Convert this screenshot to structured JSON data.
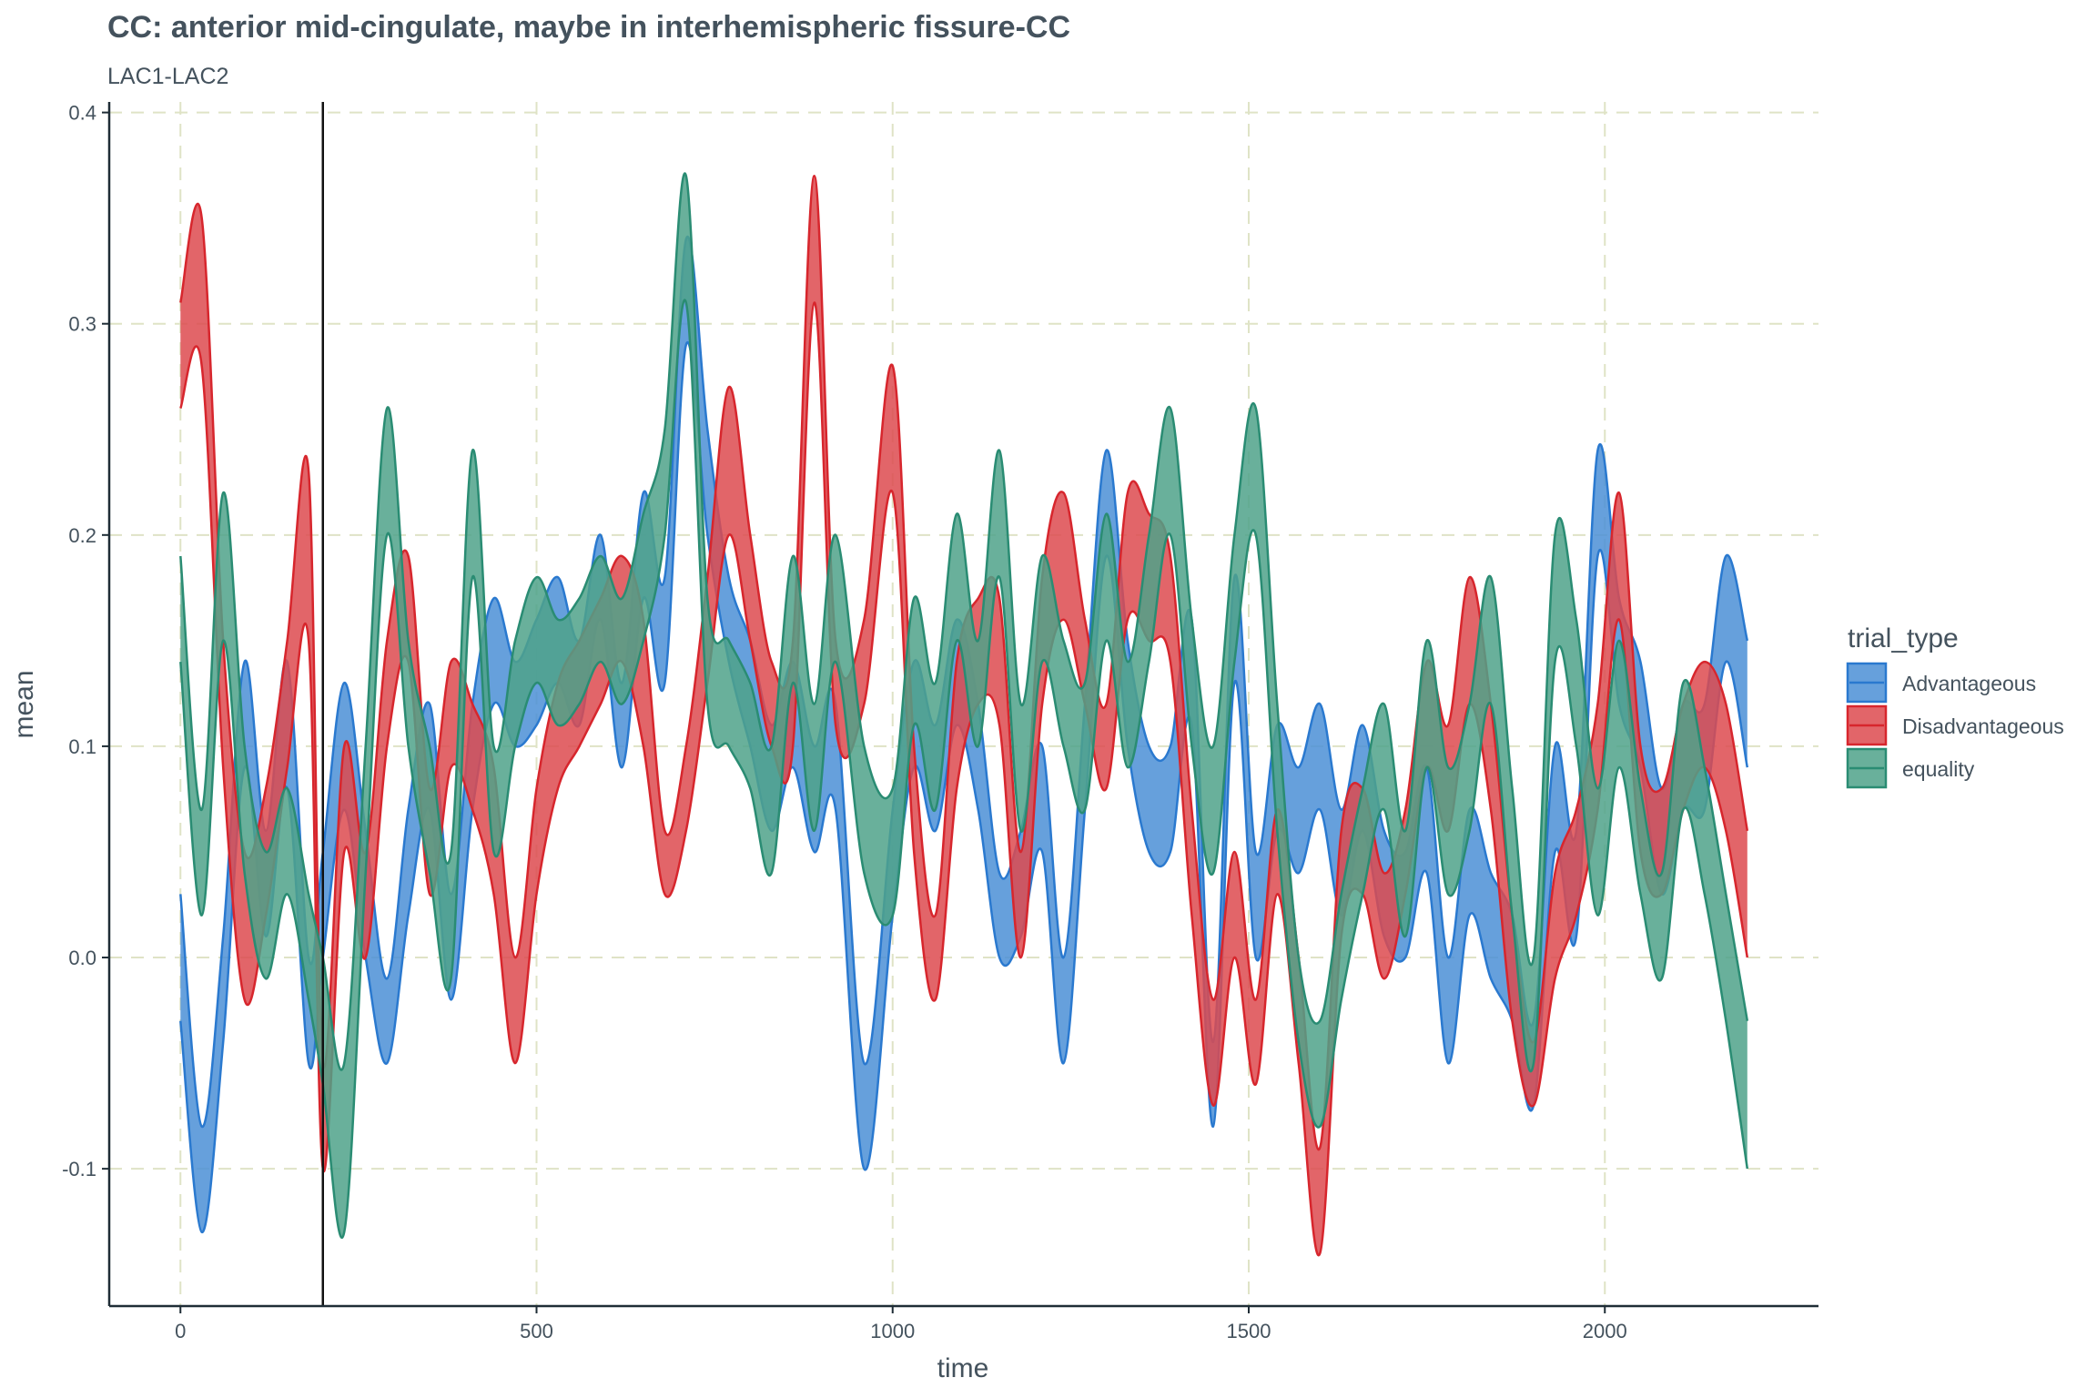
{
  "chart_data": {
    "type": "area",
    "title": "CC: anterior mid-cingulate, maybe in interhemispheric fissure-CC",
    "subtitle": "LAC1-LAC2",
    "xlabel": "time",
    "ylabel": "mean",
    "xlim": [
      -100,
      2300
    ],
    "ylim": [
      -0.165,
      0.405
    ],
    "x_ticks": [
      0,
      500,
      1000,
      1500,
      2000
    ],
    "x_tick_labels": [
      "0",
      "500",
      "1000",
      "1500",
      "2000"
    ],
    "y_ticks": [
      -0.1,
      0.0,
      0.1,
      0.2,
      0.3,
      0.4
    ],
    "y_tick_labels": [
      "-0.1",
      "0.0",
      "0.1",
      "0.2",
      "0.3",
      "0.4"
    ],
    "grid": true,
    "vline_x": 200,
    "legend_title": "trial_type",
    "legend_position": "right",
    "series": [
      {
        "name": "Advantageous",
        "color": "#2a79cf",
        "fill": "#4b8fd6",
        "x": [
          0,
          30,
          60,
          90,
          120,
          150,
          180,
          200,
          230,
          260,
          290,
          320,
          350,
          380,
          410,
          440,
          470,
          500,
          530,
          560,
          590,
          620,
          650,
          680,
          710,
          740,
          770,
          800,
          830,
          860,
          890,
          920,
          960,
          1000,
          1030,
          1060,
          1090,
          1120,
          1150,
          1180,
          1210,
          1240,
          1270,
          1300,
          1330,
          1360,
          1390,
          1420,
          1450,
          1480,
          1510,
          1540,
          1570,
          1600,
          1630,
          1660,
          1690,
          1720,
          1750,
          1780,
          1810,
          1840,
          1870,
          1900,
          1930,
          1960,
          1990,
          2020,
          2050,
          2080,
          2110,
          2140,
          2170,
          2200
        ],
        "upper": [
          0.03,
          -0.08,
          0.01,
          0.14,
          0.06,
          0.14,
          0.0,
          0.05,
          0.13,
          0.06,
          -0.01,
          0.07,
          0.12,
          0.03,
          0.12,
          0.17,
          0.14,
          0.16,
          0.18,
          0.15,
          0.2,
          0.13,
          0.22,
          0.18,
          0.34,
          0.25,
          0.18,
          0.15,
          0.11,
          0.14,
          0.1,
          0.12,
          -0.05,
          0.07,
          0.14,
          0.11,
          0.16,
          0.12,
          0.04,
          0.06,
          0.1,
          0.0,
          0.12,
          0.24,
          0.15,
          0.1,
          0.1,
          0.16,
          -0.04,
          0.18,
          0.05,
          0.11,
          0.09,
          0.12,
          0.07,
          0.11,
          0.06,
          0.05,
          0.09,
          0.0,
          0.07,
          0.04,
          0.02,
          -0.03,
          0.1,
          0.06,
          0.24,
          0.17,
          0.14,
          0.08,
          0.12,
          0.12,
          0.19,
          0.15
        ],
        "lower": [
          -0.03,
          -0.13,
          -0.04,
          0.09,
          0.01,
          0.08,
          -0.05,
          0.0,
          0.07,
          0.0,
          -0.05,
          0.02,
          0.07,
          -0.02,
          0.07,
          0.12,
          0.1,
          0.11,
          0.13,
          0.11,
          0.16,
          0.09,
          0.17,
          0.13,
          0.29,
          0.2,
          0.14,
          0.1,
          0.06,
          0.09,
          0.05,
          0.07,
          -0.1,
          0.02,
          0.09,
          0.06,
          0.11,
          0.07,
          0.0,
          0.01,
          0.05,
          -0.05,
          0.07,
          0.19,
          0.1,
          0.05,
          0.05,
          0.11,
          -0.08,
          0.13,
          0.0,
          0.06,
          0.04,
          0.07,
          0.02,
          0.06,
          0.01,
          0.0,
          0.04,
          -0.05,
          0.02,
          -0.01,
          -0.03,
          -0.07,
          0.05,
          0.01,
          0.19,
          0.12,
          0.09,
          0.03,
          0.07,
          0.07,
          0.14,
          0.09
        ]
      },
      {
        "name": "Disadvantageous",
        "color": "#d7262d",
        "fill": "#dd4a4f",
        "x": [
          0,
          30,
          60,
          90,
          120,
          150,
          180,
          200,
          230,
          260,
          290,
          320,
          350,
          380,
          410,
          440,
          470,
          500,
          530,
          560,
          590,
          620,
          650,
          680,
          710,
          740,
          770,
          800,
          830,
          860,
          890,
          920,
          960,
          1000,
          1030,
          1060,
          1090,
          1120,
          1150,
          1180,
          1210,
          1240,
          1270,
          1300,
          1330,
          1360,
          1390,
          1420,
          1450,
          1480,
          1510,
          1540,
          1570,
          1600,
          1630,
          1660,
          1690,
          1720,
          1750,
          1780,
          1810,
          1840,
          1870,
          1900,
          1930,
          1960,
          1990,
          2020,
          2050,
          2080,
          2110,
          2140,
          2170,
          2200
        ],
        "upper": [
          0.31,
          0.35,
          0.15,
          0.05,
          0.08,
          0.15,
          0.23,
          -0.05,
          0.1,
          0.05,
          0.15,
          0.19,
          0.08,
          0.14,
          0.12,
          0.09,
          0.0,
          0.08,
          0.13,
          0.15,
          0.17,
          0.19,
          0.16,
          0.06,
          0.1,
          0.18,
          0.27,
          0.2,
          0.14,
          0.15,
          0.37,
          0.15,
          0.16,
          0.28,
          0.1,
          0.02,
          0.14,
          0.17,
          0.17,
          0.05,
          0.18,
          0.22,
          0.16,
          0.12,
          0.22,
          0.21,
          0.19,
          0.07,
          -0.02,
          0.05,
          -0.02,
          0.07,
          0.0,
          -0.09,
          0.06,
          0.08,
          0.04,
          0.07,
          0.14,
          0.11,
          0.18,
          0.12,
          0.02,
          -0.04,
          0.04,
          0.07,
          0.12,
          0.22,
          0.1,
          0.08,
          0.12,
          0.14,
          0.12,
          0.06
        ],
        "lower": [
          0.26,
          0.28,
          0.09,
          -0.02,
          0.02,
          0.09,
          0.15,
          -0.1,
          0.05,
          0.0,
          0.1,
          0.14,
          0.03,
          0.09,
          0.07,
          0.03,
          -0.05,
          0.03,
          0.08,
          0.1,
          0.12,
          0.14,
          0.1,
          0.03,
          0.06,
          0.13,
          0.2,
          0.15,
          0.1,
          0.1,
          0.31,
          0.11,
          0.12,
          0.22,
          0.05,
          -0.02,
          0.08,
          0.12,
          0.11,
          0.0,
          0.12,
          0.16,
          0.12,
          0.08,
          0.16,
          0.15,
          0.14,
          0.02,
          -0.07,
          0.0,
          -0.06,
          0.03,
          -0.05,
          -0.14,
          0.01,
          0.03,
          -0.01,
          0.03,
          0.09,
          0.06,
          0.12,
          0.07,
          -0.03,
          -0.07,
          -0.01,
          0.02,
          0.07,
          0.16,
          0.05,
          0.03,
          0.07,
          0.09,
          0.06,
          0.0
        ]
      },
      {
        "name": "equality",
        "color": "#2a8c73",
        "fill": "#4fa28a",
        "x": [
          0,
          30,
          60,
          90,
          120,
          150,
          180,
          200,
          230,
          260,
          290,
          320,
          350,
          380,
          410,
          440,
          470,
          500,
          530,
          560,
          590,
          620,
          650,
          680,
          710,
          740,
          770,
          800,
          830,
          860,
          890,
          920,
          960,
          1000,
          1030,
          1060,
          1090,
          1120,
          1150,
          1180,
          1210,
          1240,
          1270,
          1300,
          1330,
          1360,
          1390,
          1420,
          1450,
          1480,
          1510,
          1540,
          1570,
          1600,
          1630,
          1660,
          1690,
          1720,
          1750,
          1780,
          1810,
          1840,
          1870,
          1900,
          1930,
          1960,
          1990,
          2020,
          2050,
          2080,
          2110,
          2140,
          2170,
          2200
        ],
        "upper": [
          0.19,
          0.07,
          0.22,
          0.1,
          0.05,
          0.08,
          0.03,
          0.0,
          -0.05,
          0.1,
          0.26,
          0.15,
          0.1,
          0.05,
          0.24,
          0.1,
          0.15,
          0.18,
          0.16,
          0.17,
          0.19,
          0.17,
          0.21,
          0.25,
          0.37,
          0.17,
          0.15,
          0.13,
          0.1,
          0.19,
          0.12,
          0.2,
          0.1,
          0.08,
          0.17,
          0.13,
          0.21,
          0.15,
          0.24,
          0.12,
          0.19,
          0.15,
          0.13,
          0.21,
          0.14,
          0.2,
          0.26,
          0.16,
          0.1,
          0.2,
          0.26,
          0.12,
          0.0,
          -0.03,
          0.03,
          0.08,
          0.12,
          0.06,
          0.15,
          0.09,
          0.12,
          0.18,
          0.08,
          0.0,
          0.2,
          0.16,
          0.08,
          0.15,
          0.08,
          0.04,
          0.13,
          0.09,
          0.03,
          -0.03
        ],
        "lower": [
          0.14,
          0.02,
          0.15,
          0.04,
          -0.01,
          0.03,
          -0.02,
          -0.06,
          -0.13,
          0.04,
          0.2,
          0.1,
          0.04,
          -0.01,
          0.18,
          0.05,
          0.1,
          0.13,
          0.11,
          0.12,
          0.14,
          0.12,
          0.15,
          0.2,
          0.31,
          0.12,
          0.1,
          0.08,
          0.04,
          0.13,
          0.06,
          0.14,
          0.04,
          0.02,
          0.11,
          0.07,
          0.15,
          0.1,
          0.18,
          0.06,
          0.14,
          0.1,
          0.07,
          0.15,
          0.09,
          0.14,
          0.2,
          0.1,
          0.04,
          0.14,
          0.2,
          0.06,
          -0.04,
          -0.08,
          -0.02,
          0.03,
          0.07,
          0.01,
          0.09,
          0.03,
          0.06,
          0.12,
          0.02,
          -0.05,
          0.14,
          0.1,
          0.02,
          0.09,
          0.03,
          -0.01,
          0.07,
          0.03,
          -0.03,
          -0.1
        ]
      }
    ]
  }
}
